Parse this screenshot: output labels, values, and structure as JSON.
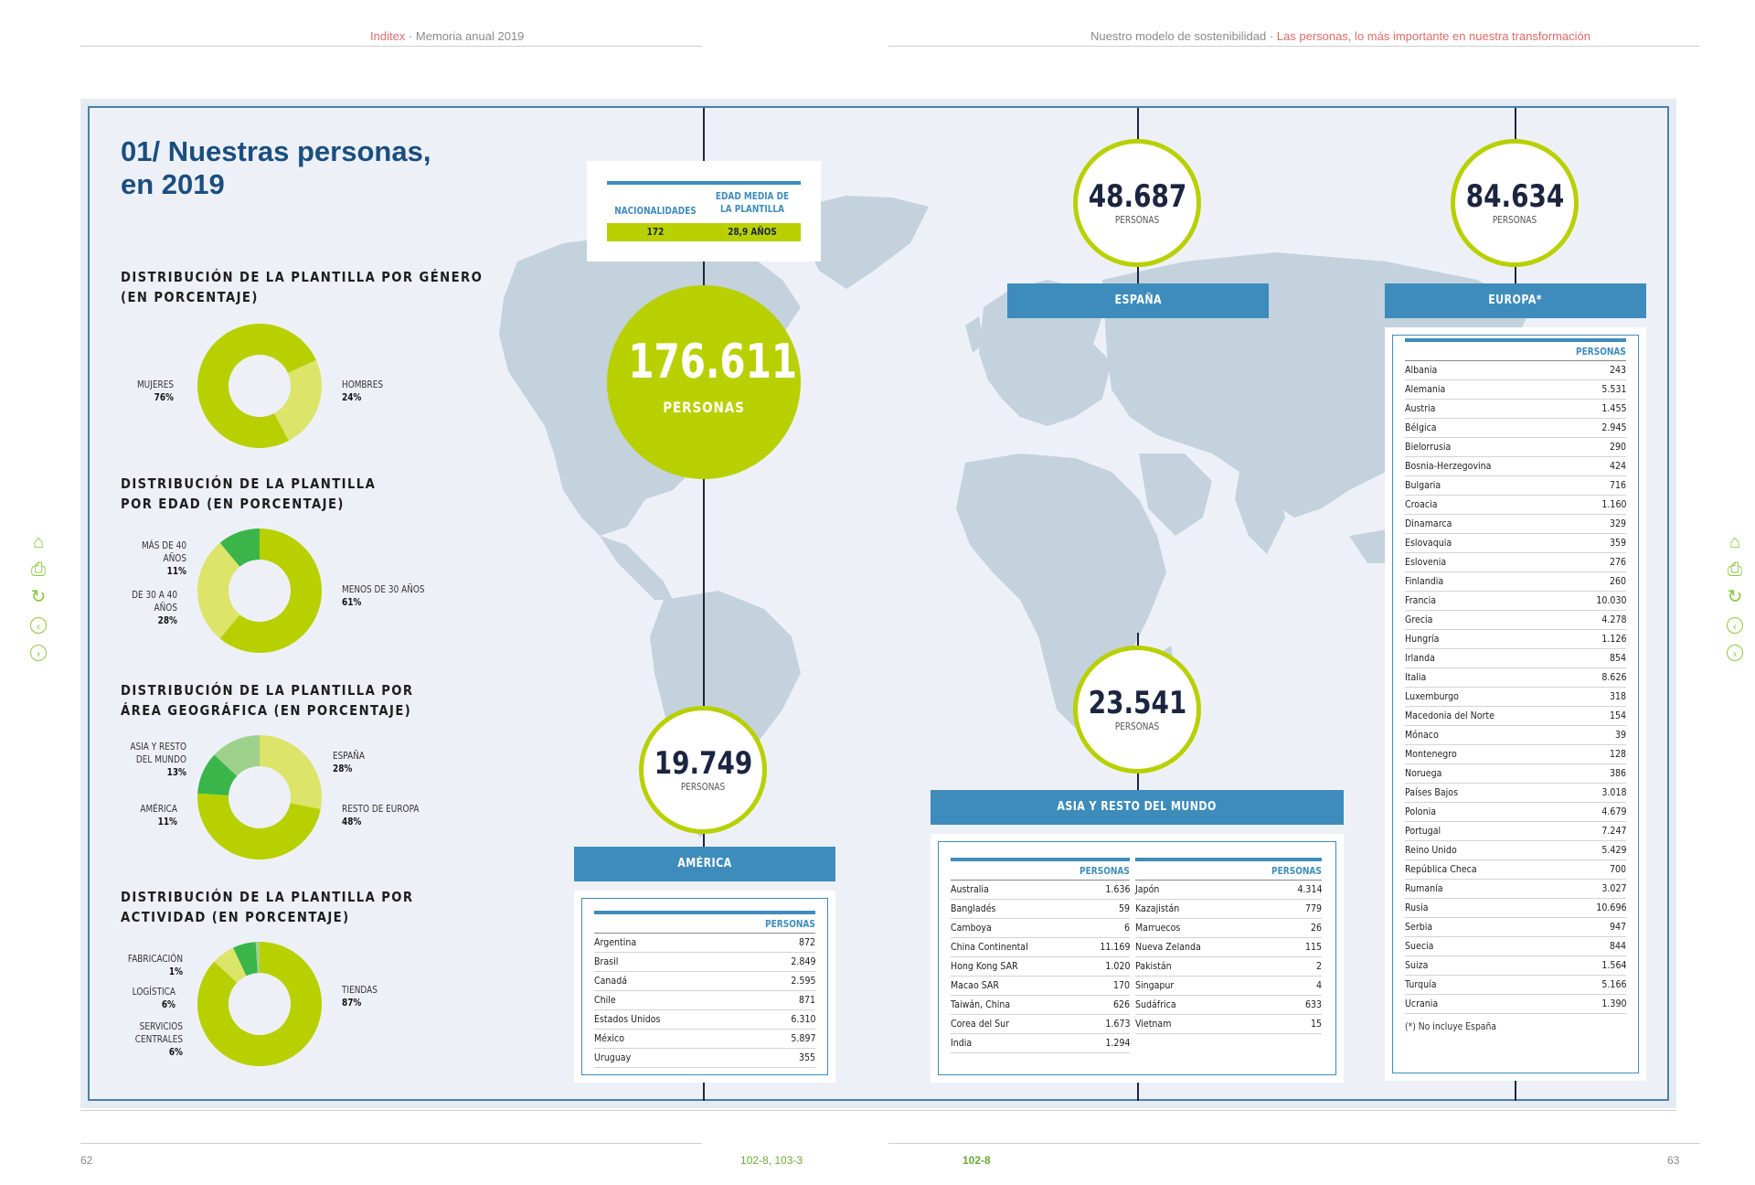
{
  "header": {
    "left_brand": "Inditex",
    "left_rest": " · Memoria anual 2019",
    "right_plain": "Nuestro modelo de sostenibilidad · ",
    "right_accent": "Las personas, lo más importante en nuestra transformación"
  },
  "footer": {
    "page_left": "62",
    "page_right": "63",
    "gri_left": "102-8, 103-3",
    "gri_right": "102-8"
  },
  "title_line1": "01/ Nuestras personas,",
  "title_line2": "en 2019",
  "sections": {
    "gender": {
      "title_l1": "DISTRIBUCIÓN DE LA PLANTILLA POR GÉNERO",
      "title_l2": "(EN PORCENTAJE)",
      "slices": [
        {
          "name": "MUJERES",
          "value": 76,
          "label": "76%",
          "color": "#b9d000"
        },
        {
          "name": "HOMBRES",
          "value": 24,
          "label": "24%",
          "color": "#dce46a"
        }
      ]
    },
    "age": {
      "title_l1": "DISTRIBUCIÓN DE LA PLANTILLA",
      "title_l2": "POR EDAD (EN PORCENTAJE)",
      "slices": [
        {
          "name": "MENOS DE 30 AÑOS",
          "value": 61,
          "label": "61%",
          "color": "#b9d000"
        },
        {
          "name_l1": "DE 30 A 40",
          "name_l2": "AÑOS",
          "value": 28,
          "label": "28%",
          "color": "#dce46a"
        },
        {
          "name_l1": "MÁS DE 40",
          "name_l2": "AÑOS",
          "value": 11,
          "label": "11%",
          "color": "#3ab54a"
        }
      ]
    },
    "geo": {
      "title_l1": "DISTRIBUCIÓN DE LA PLANTILLA POR",
      "title_l2": "ÁREA GEOGRÁFICA (EN PORCENTAJE)",
      "slices": [
        {
          "name": "ESPAÑA",
          "value": 28,
          "label": "28%",
          "color": "#dce46a"
        },
        {
          "name": "RESTO DE EUROPA",
          "value": 48,
          "label": "48%",
          "color": "#b9d000"
        },
        {
          "name": "AMÉRICA",
          "value": 11,
          "label": "11%",
          "color": "#3ab54a"
        },
        {
          "name_l1": "ASIA Y RESTO",
          "name_l2": "DEL MUNDO",
          "value": 13,
          "label": "13%",
          "color": "#9ed28c"
        }
      ]
    },
    "activity": {
      "title_l1": "DISTRIBUCIÓN DE LA PLANTILLA POR",
      "title_l2": "ACTIVIDAD (EN PORCENTAJE)",
      "slices": [
        {
          "name": "TIENDAS",
          "value": 87,
          "label": "87%",
          "color": "#b9d000"
        },
        {
          "name_l1": "SERVICIOS",
          "name_l2": "CENTRALES",
          "value": 6,
          "label": "6%",
          "color": "#dce46a"
        },
        {
          "name": "LOGÍSTICA",
          "value": 6,
          "label": "6%",
          "color": "#3ab54a"
        },
        {
          "name": "FABRICACIÓN",
          "value": 1,
          "label": "1%",
          "color": "#9ed28c"
        }
      ]
    }
  },
  "summary_box": {
    "col1_head": "NACIONALIDADES",
    "col2_head_l1": "EDAD MEDIA DE",
    "col2_head_l2": "LA PLANTILLA",
    "col1_value": "172",
    "col2_value": "28,9 AÑOS"
  },
  "total": {
    "number": "176.611",
    "label": "PERSONAS"
  },
  "spain": {
    "number": "48.687",
    "label": "PERSONAS",
    "bar": "ESPAÑA"
  },
  "europe": {
    "number": "84.634",
    "label": "PERSONAS",
    "bar": "EUROPA*",
    "col_head": "PERSONAS",
    "note": "(*)   No incluye España",
    "rows": [
      [
        "Albania",
        "243"
      ],
      [
        "Alemania",
        "5.531"
      ],
      [
        "Austria",
        "1.455"
      ],
      [
        "Bélgica",
        "2.945"
      ],
      [
        "Bielorrusia",
        "290"
      ],
      [
        "Bosnia-Herzegovina",
        "424"
      ],
      [
        "Bulgaria",
        "716"
      ],
      [
        "Croacia",
        "1.160"
      ],
      [
        "Dinamarca",
        "329"
      ],
      [
        "Eslovaquia",
        "359"
      ],
      [
        "Eslovenia",
        "276"
      ],
      [
        "Finlandia",
        "260"
      ],
      [
        "Francia",
        "10.030"
      ],
      [
        "Grecia",
        "4.278"
      ],
      [
        "Hungría",
        "1.126"
      ],
      [
        "Irlanda",
        "854"
      ],
      [
        "Italia",
        "8.626"
      ],
      [
        "Luxemburgo",
        "318"
      ],
      [
        "Macedonia del Norte",
        "154"
      ],
      [
        "Mónaco",
        "39"
      ],
      [
        "Montenegro",
        "128"
      ],
      [
        "Noruega",
        "386"
      ],
      [
        "Países Bajos",
        "3.018"
      ],
      [
        "Polonia",
        "4.679"
      ],
      [
        "Portugal",
        "7.247"
      ],
      [
        "Reino Unido",
        "5.429"
      ],
      [
        "República Checa",
        "700"
      ],
      [
        "Rumanía",
        "3.027"
      ],
      [
        "Rusia",
        "10.696"
      ],
      [
        "Serbia",
        "947"
      ],
      [
        "Suecia",
        "844"
      ],
      [
        "Suiza",
        "1.564"
      ],
      [
        "Turquía",
        "5.166"
      ],
      [
        "Ucrania",
        "1.390"
      ]
    ]
  },
  "america": {
    "number": "19.749",
    "label": "PERSONAS",
    "bar": "AMÉRICA",
    "col_head": "PERSONAS",
    "rows": [
      [
        "Argentina",
        "872"
      ],
      [
        "Brasil",
        "2.849"
      ],
      [
        "Canadá",
        "2.595"
      ],
      [
        "Chile",
        "871"
      ],
      [
        "Estados Unidos",
        "6.310"
      ],
      [
        "México",
        "5.897"
      ],
      [
        "Uruguay",
        "355"
      ]
    ]
  },
  "asia": {
    "number": "23.541",
    "label": "PERSONAS",
    "bar": "ASIA Y RESTO DEL MUNDO",
    "col_head": "PERSONAS",
    "rows_left": [
      [
        "Australia",
        "1.636"
      ],
      [
        "Bangladés",
        "59"
      ],
      [
        "Camboya",
        "6"
      ],
      [
        "China Continental",
        "11.169"
      ],
      [
        "Hong Kong SAR",
        "1.020"
      ],
      [
        "Macao SAR",
        "170"
      ],
      [
        "Taiwán, China",
        "626"
      ],
      [
        "Corea del Sur",
        "1.673"
      ],
      [
        "India",
        "1.294"
      ]
    ],
    "rows_right": [
      [
        "Japón",
        "4.314"
      ],
      [
        "Kazajistán",
        "779"
      ],
      [
        "Marruecos",
        "26"
      ],
      [
        "Nueva Zelanda",
        "115"
      ],
      [
        "Pakistán",
        "2"
      ],
      [
        "Singapur",
        "4"
      ],
      [
        "Sudáfrica",
        "633"
      ],
      [
        "Vietnam",
        "15"
      ]
    ]
  },
  "nav_icons": [
    "home-icon",
    "print-icon",
    "refresh-icon",
    "prev-icon",
    "next-icon"
  ]
}
